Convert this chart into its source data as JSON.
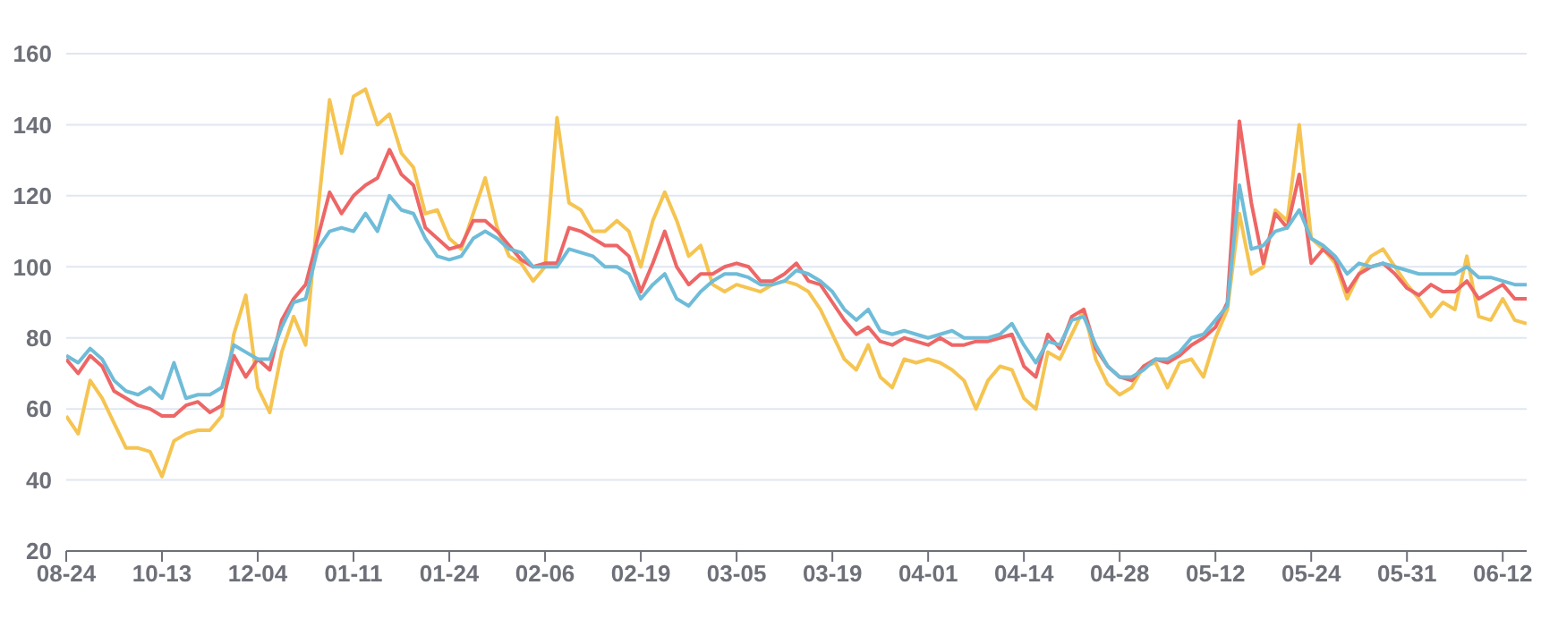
{
  "chart_data": {
    "type": "line",
    "categories": [
      "08-24",
      null,
      null,
      null,
      null,
      null,
      null,
      null,
      "10-13",
      null,
      null,
      null,
      null,
      null,
      null,
      null,
      "12-04",
      null,
      null,
      null,
      null,
      null,
      null,
      null,
      "01-11",
      null,
      null,
      null,
      null,
      null,
      null,
      null,
      "01-24",
      null,
      null,
      null,
      null,
      null,
      null,
      null,
      "02-06",
      null,
      null,
      null,
      null,
      null,
      null,
      null,
      "02-19",
      null,
      null,
      null,
      null,
      null,
      null,
      null,
      "03-05",
      null,
      null,
      null,
      null,
      null,
      null,
      null,
      "03-19",
      null,
      null,
      null,
      null,
      null,
      null,
      null,
      "04-01",
      null,
      null,
      null,
      null,
      null,
      null,
      null,
      "04-14",
      null,
      null,
      null,
      null,
      null,
      null,
      null,
      "04-28",
      null,
      null,
      null,
      null,
      null,
      null,
      null,
      "05-12",
      null,
      null,
      null,
      null,
      null,
      null,
      null,
      "05-24",
      null,
      null,
      null,
      null,
      null,
      null,
      null,
      "05-31",
      null,
      null,
      null,
      null,
      null,
      null,
      null,
      "06-12",
      null,
      null
    ],
    "series": [
      {
        "color": "#f5c451",
        "values": [
          58,
          53,
          68,
          63,
          56,
          49,
          49,
          48,
          41,
          51,
          53,
          54,
          54,
          58,
          81,
          92,
          66,
          59,
          76,
          86,
          78,
          115,
          147,
          132,
          148,
          150,
          140,
          143,
          132,
          128,
          115,
          116,
          108,
          105,
          115,
          125,
          111,
          103,
          101,
          96,
          100,
          142,
          118,
          116,
          110,
          110,
          113,
          110,
          100,
          113,
          121,
          113,
          103,
          106,
          95,
          93,
          95,
          94,
          93,
          95,
          96,
          95,
          93,
          88,
          81,
          74,
          71,
          78,
          69,
          66,
          74,
          73,
          74,
          73,
          71,
          68,
          60,
          68,
          72,
          71,
          63,
          60,
          76,
          74,
          81,
          88,
          74,
          67,
          64,
          66,
          72,
          73,
          66,
          73,
          74,
          69,
          80,
          88,
          115,
          98,
          100,
          116,
          113,
          140,
          108,
          105,
          101,
          91,
          98,
          103,
          105,
          100,
          95,
          91,
          86,
          90,
          88,
          103,
          86,
          85,
          91,
          85,
          84
        ]
      },
      {
        "color": "#ee6666",
        "values": [
          74,
          70,
          75,
          72,
          65,
          63,
          61,
          60,
          58,
          58,
          61,
          62,
          59,
          61,
          75,
          69,
          74,
          71,
          85,
          91,
          95,
          108,
          121,
          115,
          120,
          123,
          125,
          133,
          126,
          123,
          111,
          108,
          105,
          106,
          113,
          113,
          110,
          106,
          102,
          100,
          101,
          101,
          111,
          110,
          108,
          106,
          106,
          103,
          93,
          101,
          110,
          100,
          95,
          98,
          98,
          100,
          101,
          100,
          96,
          96,
          98,
          101,
          96,
          95,
          90,
          85,
          81,
          83,
          79,
          78,
          80,
          79,
          78,
          80,
          78,
          78,
          79,
          79,
          80,
          81,
          72,
          69,
          81,
          77,
          86,
          88,
          77,
          72,
          69,
          68,
          72,
          74,
          73,
          75,
          78,
          80,
          83,
          90,
          141,
          118,
          101,
          115,
          111,
          126,
          101,
          105,
          102,
          93,
          98,
          100,
          101,
          98,
          94,
          92,
          95,
          93,
          93,
          96,
          91,
          93,
          95,
          91,
          91
        ]
      },
      {
        "color": "#6fbcd8",
        "values": [
          75,
          73,
          77,
          74,
          68,
          65,
          64,
          66,
          63,
          73,
          63,
          64,
          64,
          66,
          78,
          76,
          74,
          74,
          83,
          90,
          91,
          105,
          110,
          111,
          110,
          115,
          110,
          120,
          116,
          115,
          108,
          103,
          102,
          103,
          108,
          110,
          108,
          105,
          104,
          100,
          100,
          100,
          105,
          104,
          103,
          100,
          100,
          98,
          91,
          95,
          98,
          91,
          89,
          93,
          96,
          98,
          98,
          97,
          95,
          95,
          96,
          99,
          98,
          96,
          93,
          88,
          85,
          88,
          82,
          81,
          82,
          81,
          80,
          81,
          82,
          80,
          80,
          80,
          81,
          84,
          78,
          73,
          79,
          78,
          85,
          86,
          78,
          72,
          69,
          69,
          71,
          74,
          74,
          76,
          80,
          81,
          85,
          89,
          123,
          105,
          106,
          110,
          111,
          116,
          108,
          106,
          103,
          98,
          101,
          100,
          101,
          100,
          99,
          98,
          98,
          98,
          98,
          100,
          97,
          97,
          96,
          95,
          95
        ]
      }
    ],
    "ylim": [
      20,
      160
    ],
    "yticks": [
      20,
      40,
      60,
      80,
      100,
      120,
      140,
      160
    ],
    "grid": "y",
    "legend": false,
    "marker": "none",
    "line_style": "solid"
  }
}
